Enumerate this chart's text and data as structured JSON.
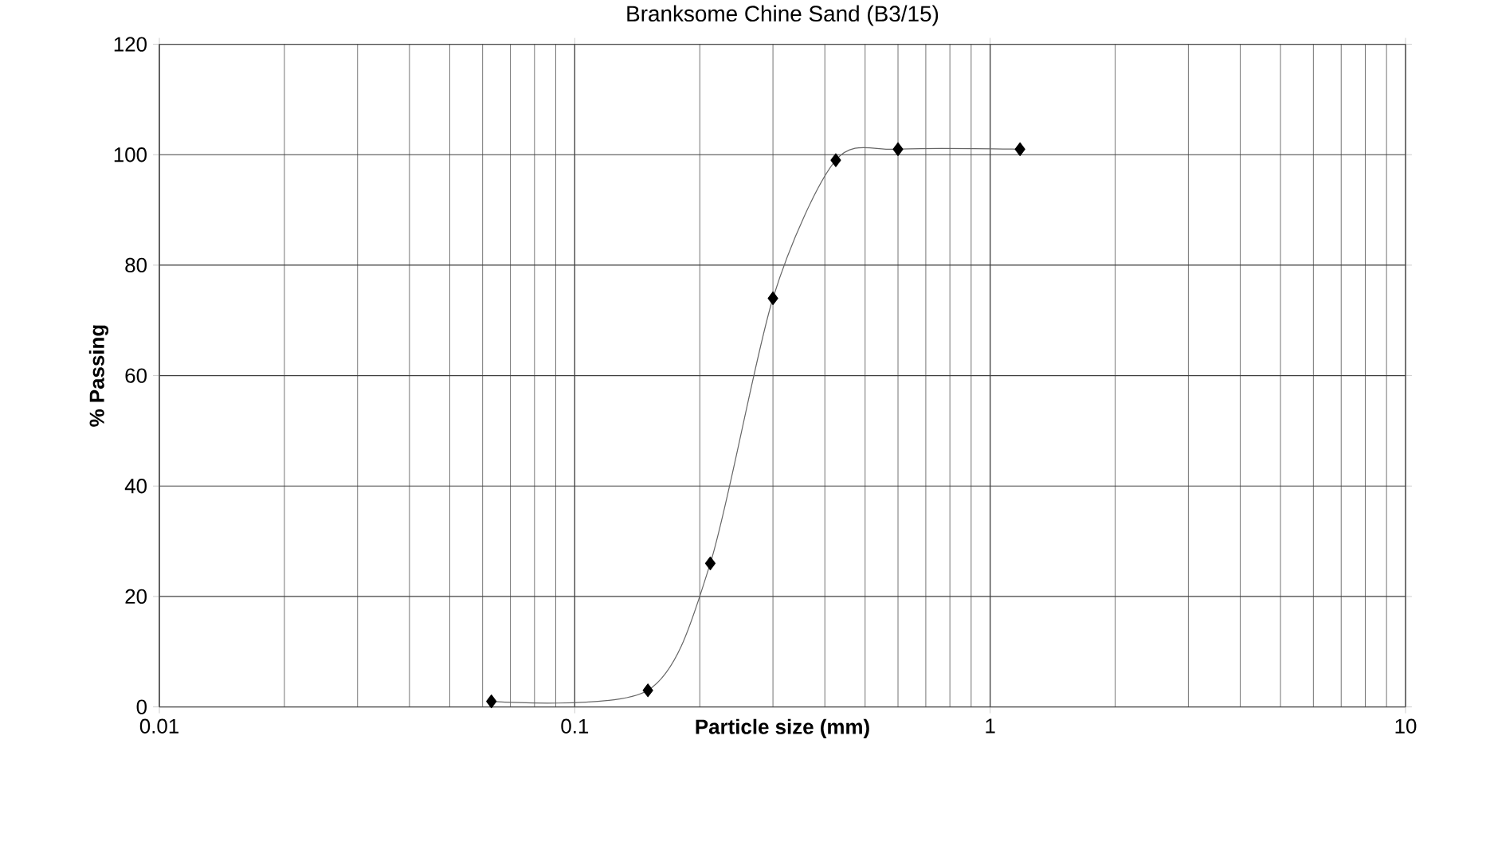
{
  "chart_data": {
    "type": "line",
    "title": "Branksome Chine Sand (B3/15)",
    "xlabel": "Particle size (mm)",
    "ylabel": "% Passing",
    "x": [
      0.063,
      0.15,
      0.212,
      0.3,
      0.425,
      0.6,
      1.18
    ],
    "series": [
      {
        "color": "#000000",
        "values": [
          1,
          3,
          26,
          74,
          99,
          101,
          101
        ]
      }
    ],
    "log": "x",
    "xlim": [
      0.01,
      10
    ],
    "xticks": [
      0.01,
      0.1,
      1,
      10
    ],
    "ylim": [
      0,
      120
    ],
    "yticks": [
      0,
      20,
      40,
      60,
      80,
      100,
      120
    ],
    "grid": true,
    "marker": "diamond",
    "line_style": "solid"
  }
}
